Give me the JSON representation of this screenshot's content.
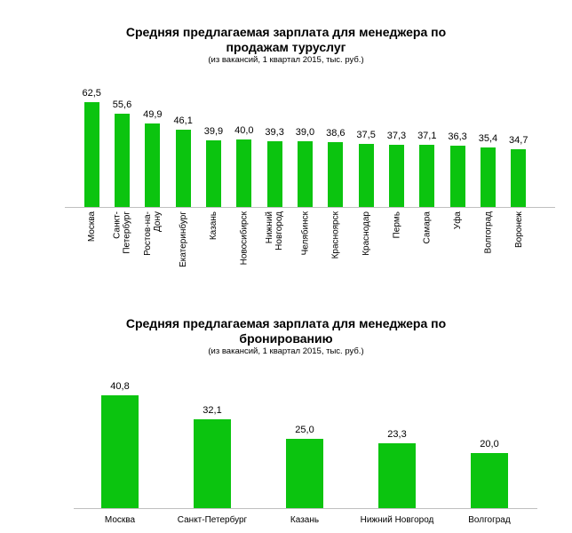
{
  "chart_data": [
    {
      "type": "bar",
      "title": "Средняя предлагаемая зарплата для менеджера по\nпродажам туруслуг",
      "subtitle": "(из вакансий, 1 квартал 2015, тыс. руб.)",
      "unit": "тыс. руб.",
      "categories": [
        "Москва",
        "Санкт-\nПетербург",
        "Ростов-на-\nДону",
        "Екатеринбург",
        "Казань",
        "Новосибирск",
        "Нижний\nНовгород",
        "Челябинск",
        "Красноярск",
        "Краснодар",
        "Пермь",
        "Самара",
        "Уфа",
        "Волгоград",
        "Воронеж"
      ],
      "values": [
        62.5,
        55.6,
        49.9,
        46.1,
        39.9,
        40.0,
        39.3,
        39.0,
        38.6,
        37.5,
        37.3,
        37.1,
        36.3,
        35.4,
        34.7
      ],
      "value_labels": [
        "62,5",
        "55,6",
        "49,9",
        "46,1",
        "39,9",
        "40,0",
        "39,3",
        "39,0",
        "38,6",
        "37,5",
        "37,3",
        "37,1",
        "36,3",
        "35,4",
        "34,7"
      ],
      "bar_color": "#0bc40f",
      "axis_color": "#c0c0c0",
      "ylim": [
        0,
        62.5
      ],
      "grid": false,
      "legend": false,
      "category_label_rotation": -90
    },
    {
      "type": "bar",
      "title": "Средняя предлагаемая зарплата для менеджера по\nбронированию",
      "subtitle": "(из вакансий, 1 квартал 2015, тыс. руб.)",
      "unit": "тыс. руб.",
      "categories": [
        "Москва",
        "Санкт-Петербург",
        "Казань",
        "Нижний Новгород",
        "Волгоград"
      ],
      "values": [
        40.8,
        32.1,
        25.0,
        23.3,
        20.0
      ],
      "value_labels": [
        "40,8",
        "32,1",
        "25,0",
        "23,3",
        "20,0"
      ],
      "bar_color": "#0bc40f",
      "axis_color": "#c0c0c0",
      "ylim": [
        0,
        40.8
      ],
      "grid": false,
      "legend": false,
      "category_label_rotation": 0
    }
  ]
}
